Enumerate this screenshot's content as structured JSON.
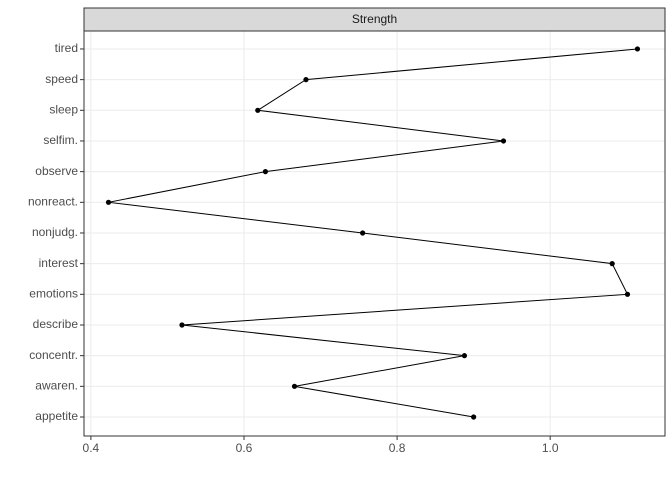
{
  "chart_data": {
    "type": "line",
    "strip": "Strength",
    "categories": [
      "appetite",
      "awaren.",
      "concentr.",
      "describe",
      "emotions",
      "interest",
      "nonjudg.",
      "nonreact.",
      "observe",
      "selfim.",
      "sleep",
      "speed",
      "tired"
    ],
    "values": [
      0.9,
      0.666,
      0.888,
      0.519,
      1.101,
      1.081,
      0.755,
      0.423,
      0.628,
      0.939,
      0.618,
      0.681,
      1.114
    ],
    "color": "#000000",
    "xlim": [
      0.391,
      1.15
    ],
    "xticks": [
      0.4,
      0.6,
      0.8,
      {
        "value": 1,
        "label": "1.0"
      }
    ],
    "grid": true
  }
}
